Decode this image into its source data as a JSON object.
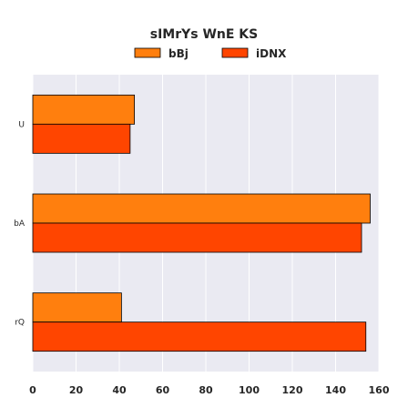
{
  "chart_data": {
    "type": "bar",
    "orientation": "horizontal",
    "title": "sIMrYs WnE KS",
    "categories": [
      "U",
      "bA",
      "rQ"
    ],
    "series": [
      {
        "name": "bBj",
        "color": "#ff7f0e",
        "values": [
          47,
          156,
          41
        ]
      },
      {
        "name": "iDNX",
        "color": "#ff4500",
        "values": [
          45,
          152,
          154
        ]
      }
    ],
    "xlim": [
      0,
      160
    ],
    "xticks": [
      0,
      20,
      40,
      60,
      80,
      100,
      120,
      140,
      160
    ],
    "grid": true,
    "legend_position": "top-center",
    "background": "#eaeaf2",
    "edge_color": "#000000"
  }
}
